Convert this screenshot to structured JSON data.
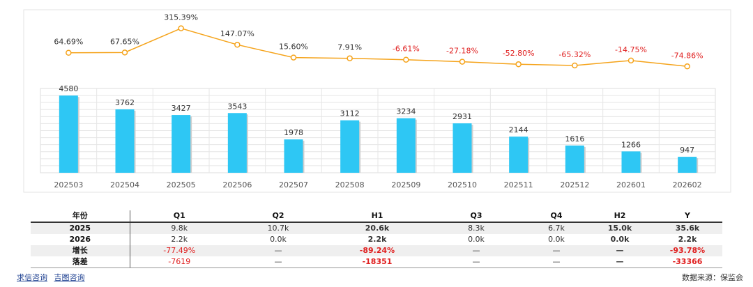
{
  "chart_data": {
    "type": "bar+line",
    "categories": [
      "202503",
      "202504",
      "202505",
      "202506",
      "202507",
      "202508",
      "202509",
      "202510",
      "202511",
      "202512",
      "202601",
      "202602"
    ],
    "series": [
      {
        "name": "bars",
        "type": "bar",
        "values": [
          4580,
          3762,
          3427,
          3543,
          1978,
          3112,
          3234,
          2931,
          2144,
          1616,
          1266,
          947
        ],
        "color": "#2ec7f4"
      },
      {
        "name": "growth",
        "type": "line",
        "values": [
          64.69,
          67.65,
          315.39,
          147.07,
          15.6,
          7.91,
          -6.61,
          -27.18,
          -52.8,
          -65.32,
          -14.75,
          -74.86
        ],
        "labels": [
          "64.69%",
          "67.65%",
          "315.39%",
          "147.07%",
          "15.60%",
          "7.91%",
          "-6.61%",
          "-27.18%",
          "-52.80%",
          "-65.32%",
          "-14.75%",
          "-74.86%"
        ],
        "color": "#f5a31a"
      }
    ],
    "bar_ylim": [
      0,
      5000
    ],
    "line_ylim": [
      -80,
      320
    ],
    "positive_label_color": "#333333",
    "negative_label_color": "#e02020"
  },
  "table": {
    "headers": [
      "年份",
      "Q1",
      "Q2",
      "H1",
      "Q3",
      "Q4",
      "H2",
      "Y"
    ],
    "rows": [
      {
        "label": "2025",
        "cells": [
          "9.8k",
          "10.7k",
          "20.6k",
          "8.3k",
          "6.7k",
          "15.0k",
          "35.6k"
        ]
      },
      {
        "label": "2026",
        "cells": [
          "2.2k",
          "0.0k",
          "2.2k",
          "0.0k",
          "0.0k",
          "0.0k",
          "2.2k"
        ]
      },
      {
        "label": "增长",
        "cells": [
          "-77.49%",
          "—",
          "-89.24%",
          "—",
          "—",
          "—",
          "-93.78%"
        ]
      },
      {
        "label": "落差",
        "cells": [
          "-7619",
          "—",
          "-18351",
          "—",
          "—",
          "—",
          "-33366"
        ]
      }
    ]
  },
  "footer": {
    "link1": "求信咨询",
    "link2": "吉图咨询",
    "source": "数据来源：保监会"
  }
}
